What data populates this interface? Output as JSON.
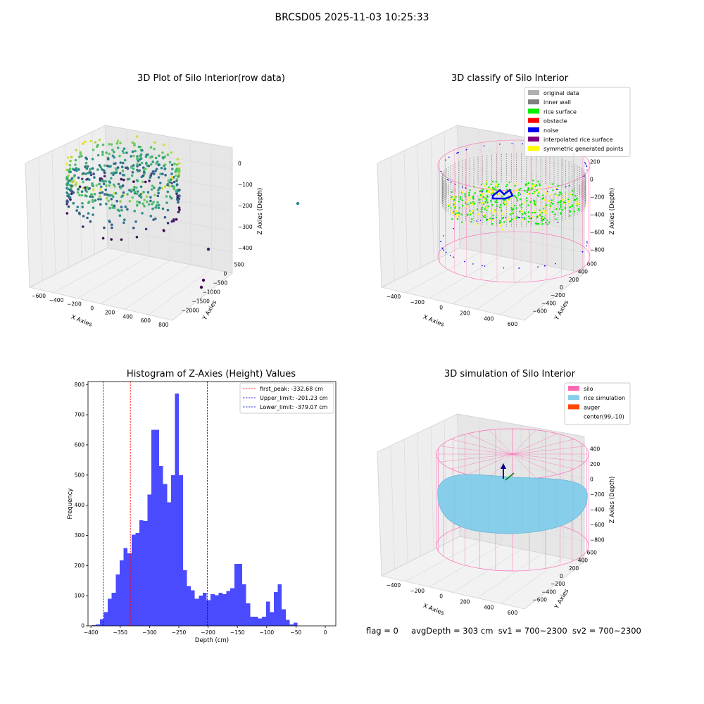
{
  "figure": {
    "suptitle": "BRCSD05 2025-11-03 10:25:33",
    "status": {
      "flag": "flag = 0",
      "avg_depth": "avgDepth = 303 cm",
      "sv1": "sv1 = 700~2300",
      "sv2": "sv2 = 700~2300"
    }
  },
  "colors": {
    "histogram_bar": "#4a4aff",
    "first_peak": "#ff0000",
    "limit": "#0000cc",
    "silo": "#ff69b4",
    "rice_simulation": "#87ceeb",
    "auger": "#ff4500",
    "rice_surface": "#00ee00",
    "noise": "#0000ee",
    "symmetric": "#ffff00"
  },
  "chart_data": [
    {
      "type": "scatter",
      "projection": "3d",
      "title": "3D Plot of Silo Interior(row data)",
      "xlabel": "X Axies",
      "ylabel": "Y Axies",
      "zlabel": "Z Axies (Depth)",
      "x_ticks": [
        "−600",
        "−400",
        "−200",
        "0",
        "200",
        "400",
        "600",
        "800"
      ],
      "y_ticks": [
        "500",
        "0",
        "−500",
        "−1000",
        "−1500",
        "−2000"
      ],
      "z_ticks": [
        "0",
        "−100",
        "−200",
        "−300",
        "−400"
      ],
      "colormap": "viridis"
    },
    {
      "type": "scatter",
      "projection": "3d",
      "title": "3D classify of Silo Interior",
      "xlabel": "X Axies",
      "ylabel": "Y Axies",
      "zlabel": "Z Axies (Depth)",
      "x_ticks": [
        "−400",
        "−200",
        "0",
        "200",
        "400",
        "600"
      ],
      "y_ticks": [
        "600",
        "400",
        "200",
        "0",
        "−200",
        "−400",
        "−600"
      ],
      "z_ticks": [
        "200",
        "0",
        "−200",
        "−400",
        "−600",
        "−800"
      ],
      "legend": [
        {
          "label": "original data",
          "color": "#b0b0b0"
        },
        {
          "label": "inner wall",
          "color": "#808080"
        },
        {
          "label": "rice surface",
          "color": "#00ee00"
        },
        {
          "label": "obstacle",
          "color": "#ff0000"
        },
        {
          "label": "noise",
          "color": "#0000ee"
        },
        {
          "label": "interpolated rice surface",
          "color": "#800080"
        },
        {
          "label": "symmetric generated points",
          "color": "#ffff00"
        }
      ]
    },
    {
      "type": "bar",
      "title": "Histogram of Z-Axies (Height) Values",
      "xlabel": "Depth (cm)",
      "ylabel": "Frequency",
      "xlim": [
        -405,
        18
      ],
      "ylim": [
        0,
        810
      ],
      "x_ticks": [
        -400,
        -350,
        -300,
        -250,
        -200,
        -150,
        -100,
        -50,
        0
      ],
      "x_tick_labels": [
        "−400",
        "−350",
        "−300",
        "−250",
        "−200",
        "−150",
        "−100",
        "−50",
        "0"
      ],
      "y_ticks": [
        0,
        100,
        200,
        300,
        400,
        500,
        600,
        700,
        800
      ],
      "bin_start": -405,
      "bin_width": 6.75,
      "values": [
        0,
        2,
        5,
        22,
        45,
        90,
        110,
        170,
        217,
        258,
        240,
        302,
        308,
        350,
        348,
        435,
        650,
        650,
        530,
        470,
        410,
        500,
        770,
        500,
        185,
        132,
        118,
        90,
        100,
        110,
        85,
        105,
        102,
        110,
        105,
        115,
        125,
        205,
        205,
        138,
        75,
        30,
        30,
        25,
        30,
        80,
        45,
        112,
        138,
        55,
        20,
        5,
        10
      ],
      "vlines": [
        {
          "label": "first_peak: -332.68 cm",
          "x": -332.68,
          "color": "#ff0000"
        },
        {
          "label": "Upper_limit: -201.23 cm",
          "x": -201.23,
          "color": "#0000cc"
        },
        {
          "label": "Lower_limit: -379.07 cm",
          "x": -379.07,
          "color": "#0000cc"
        }
      ]
    },
    {
      "type": "area",
      "projection": "3d",
      "title": "3D simulation of Silo Interior",
      "xlabel": "X Axies",
      "ylabel": "Y Axies",
      "zlabel": "Z Axies (Depth)",
      "x_ticks": [
        "−400",
        "−200",
        "0",
        "200",
        "400",
        "600"
      ],
      "y_ticks": [
        "600",
        "400",
        "200",
        "0",
        "−200",
        "−400",
        "−600"
      ],
      "z_ticks": [
        "400",
        "200",
        "0",
        "−200",
        "−400",
        "−600",
        "−800"
      ],
      "legend": [
        {
          "label": "silo",
          "color": "#ff69b4"
        },
        {
          "label": "rice simulation",
          "color": "#87ceeb"
        },
        {
          "label": "auger",
          "color": "#ff4500"
        },
        {
          "label": "center(99,-10)",
          "color": ""
        }
      ]
    }
  ]
}
